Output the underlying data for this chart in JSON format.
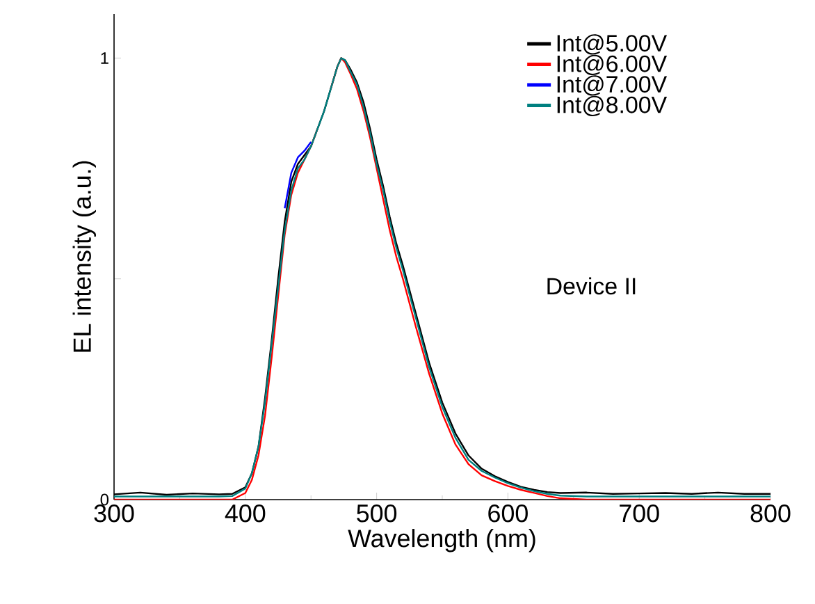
{
  "chart_data": {
    "type": "line",
    "xlabel": "Wavelength (nm)",
    "ylabel": "EL intensity (a.u.)",
    "xlim": [
      300,
      800
    ],
    "ylim": [
      0,
      1.1
    ],
    "xticks": [
      300,
      400,
      500,
      600,
      700,
      800
    ],
    "yticks": [
      0,
      {
        "value": 0.5,
        "label": null
      },
      1
    ],
    "legend": "top right",
    "grid": false,
    "marker": "none",
    "line_style": "solid",
    "annotations": [
      "Device II"
    ],
    "x": [
      300,
      320,
      340,
      360,
      380,
      390,
      400,
      405,
      410,
      415,
      420,
      425,
      430,
      435,
      440,
      445,
      450,
      455,
      460,
      465,
      470,
      473,
      476,
      480,
      485,
      490,
      495,
      500,
      505,
      510,
      515,
      520,
      530,
      540,
      550,
      560,
      570,
      580,
      590,
      600,
      610,
      620,
      630,
      640,
      660,
      680,
      700,
      720,
      740,
      760,
      780,
      800
    ],
    "series": [
      {
        "name": "Int@5.00V",
        "color": "#000000",
        "values": [
          0.012,
          0.016,
          0.011,
          0.014,
          0.012,
          0.013,
          0.028,
          0.06,
          0.12,
          0.23,
          0.36,
          0.5,
          0.63,
          0.72,
          0.76,
          0.78,
          0.8,
          0.84,
          0.88,
          0.93,
          0.98,
          1.0,
          0.995,
          0.975,
          0.945,
          0.9,
          0.84,
          0.77,
          0.71,
          0.64,
          0.58,
          0.53,
          0.42,
          0.31,
          0.22,
          0.15,
          0.1,
          0.07,
          0.053,
          0.04,
          0.029,
          0.022,
          0.017,
          0.015,
          0.016,
          0.013,
          0.014,
          0.015,
          0.013,
          0.016,
          0.013,
          0.013
        ]
      },
      {
        "name": "Int@6.00V",
        "color": "#ff0000",
        "values": [
          0.0,
          0.0,
          0.0,
          0.0,
          0.0,
          0.0,
          0.015,
          0.045,
          0.1,
          0.19,
          0.32,
          0.46,
          0.6,
          0.69,
          0.74,
          0.77,
          0.8,
          0.84,
          null,
          0.93,
          0.98,
          1.0,
          0.99,
          0.965,
          0.93,
          0.88,
          0.82,
          0.75,
          0.68,
          0.61,
          0.55,
          0.5,
          0.39,
          0.285,
          0.195,
          0.125,
          0.08,
          0.055,
          0.042,
          0.031,
          0.022,
          0.015,
          0.008,
          0.003,
          0.0,
          0.0,
          0.0,
          0.0,
          0.0,
          0.0,
          0.0,
          0.0
        ]
      },
      {
        "name": "Int@7.00V",
        "color": "#0000ff",
        "values": [
          null,
          null,
          null,
          null,
          null,
          null,
          null,
          null,
          null,
          null,
          null,
          null,
          0.66,
          0.74,
          0.775,
          0.79,
          0.81,
          null,
          null,
          null,
          null,
          null,
          null,
          null,
          null,
          null,
          null,
          null,
          null,
          null,
          null,
          null,
          null,
          null,
          null,
          null,
          null,
          null,
          null,
          null,
          null,
          null,
          null,
          null,
          null,
          null,
          null,
          null,
          null,
          null,
          null,
          null
        ]
      },
      {
        "name": "Int@8.00V",
        "color": "#008080",
        "values": [
          0.007,
          0.007,
          0.007,
          0.007,
          0.007,
          0.008,
          0.025,
          0.06,
          0.12,
          0.22,
          0.35,
          0.48,
          0.61,
          0.7,
          0.75,
          0.77,
          0.8,
          0.84,
          0.88,
          0.93,
          0.98,
          1.0,
          0.995,
          0.97,
          0.94,
          0.89,
          0.83,
          0.76,
          0.7,
          0.63,
          0.57,
          0.52,
          0.41,
          0.3,
          0.21,
          0.14,
          0.09,
          0.065,
          0.05,
          0.037,
          0.027,
          0.019,
          0.013,
          0.009,
          0.007,
          0.007,
          0.007,
          0.007,
          0.007,
          0.007,
          0.007,
          0.007
        ]
      }
    ]
  }
}
